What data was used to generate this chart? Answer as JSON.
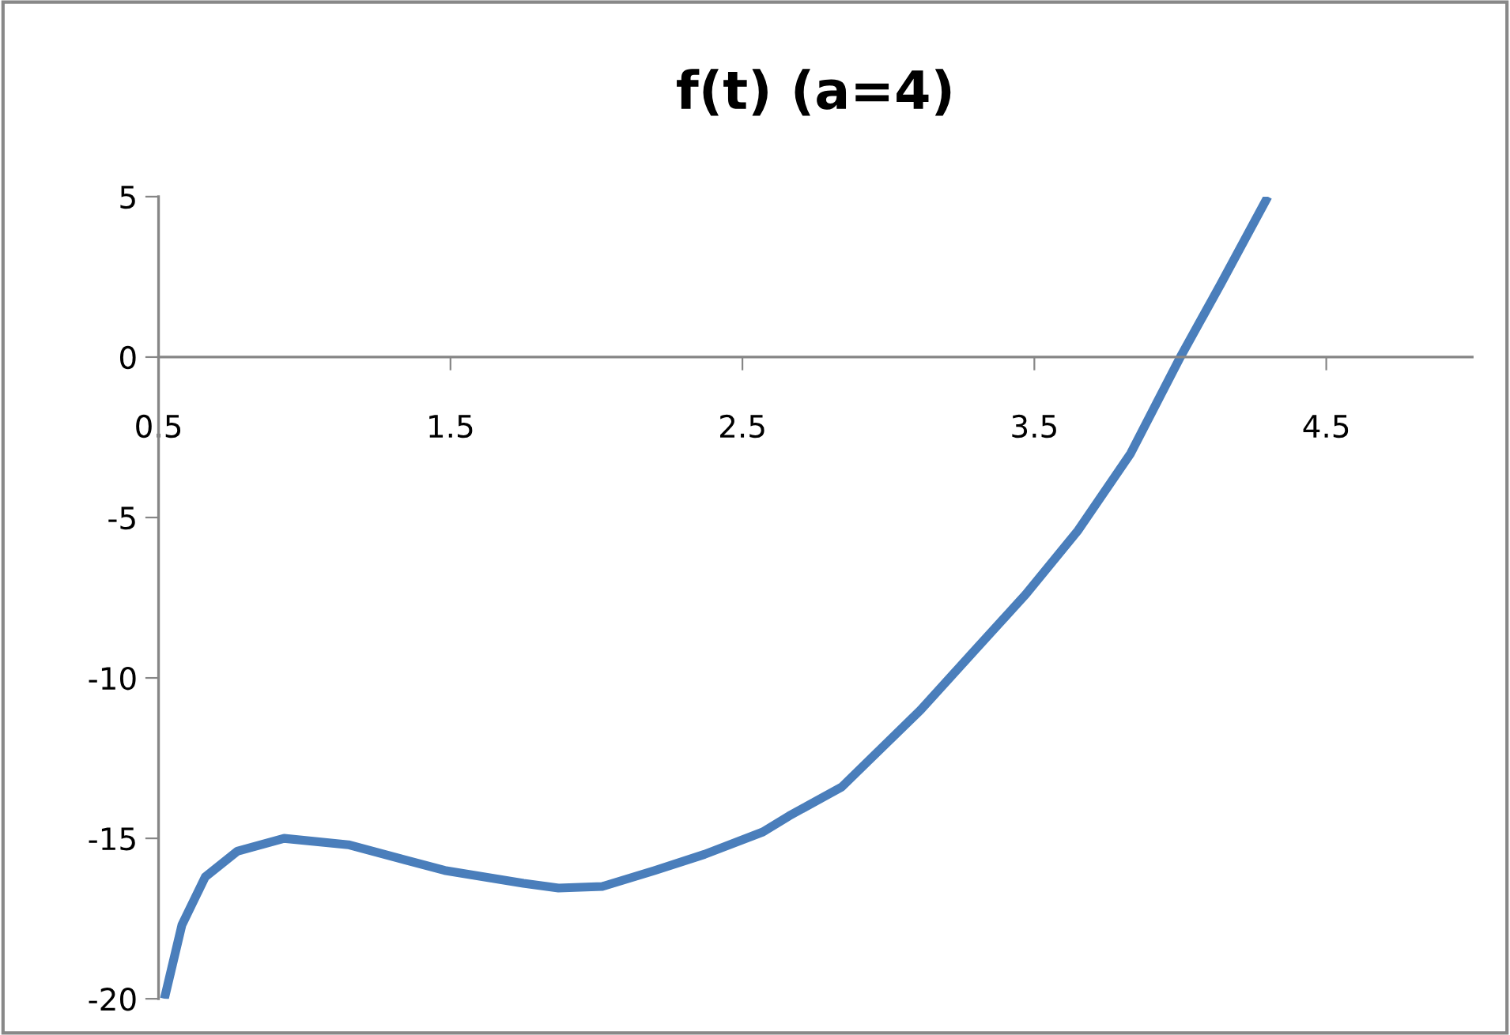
{
  "chart_data": {
    "type": "line",
    "title": "f(t) (a=4)",
    "x": [
      0.52,
      0.58,
      0.66,
      0.77,
      0.93,
      1.15,
      1.48,
      1.75,
      1.87,
      2.02,
      2.2,
      2.37,
      2.57,
      2.66,
      2.84,
      2.93,
      3.11,
      3.29,
      3.47,
      3.65,
      3.83,
      4.0,
      4.14,
      4.3
    ],
    "series": [
      {
        "color": "#4a7ebb",
        "values": [
          -20,
          -17.7,
          -16.2,
          -15.4,
          -15.0,
          -15.2,
          -16.0,
          -16.4,
          -16.55,
          -16.5,
          -16.0,
          -15.5,
          -14.8,
          -14.3,
          -13.4,
          -12.6,
          -11.0,
          -9.2,
          -7.4,
          -5.4,
          -3.0,
          0,
          2.3,
          5
        ]
      }
    ],
    "xlim": [
      0.5,
      5
    ],
    "xticks": [
      0.5,
      1.5,
      2.5,
      3.5,
      4.5
    ],
    "ylim": [
      -20,
      5
    ],
    "yticks": [
      -20,
      -15,
      -10,
      -5,
      0,
      5
    ],
    "grid": false,
    "legend": false,
    "marker": "none",
    "line_style": "solid"
  }
}
